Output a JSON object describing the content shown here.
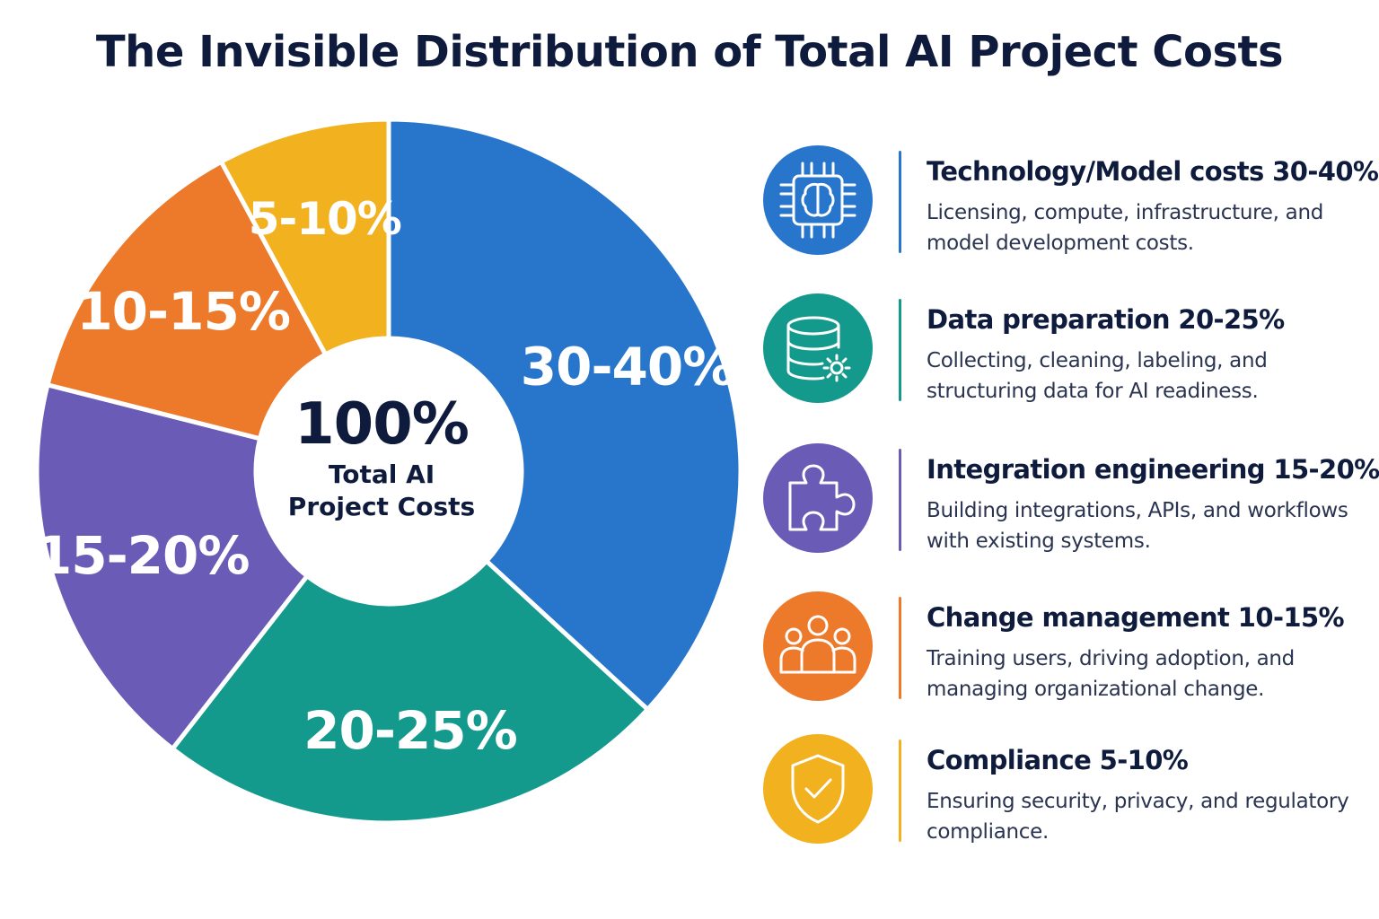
{
  "title": "The Invisible Distribution of Total AI Project Costs",
  "center": {
    "value": "100%",
    "label": "Total AI Project Costs"
  },
  "chart_data": {
    "type": "pie",
    "title": "The Invisible Distribution of Total AI Project Costs",
    "center_value": "100%",
    "center_label": "Total AI Project Costs",
    "start_angle_deg": -90,
    "slices": [
      {
        "label": "30-40%",
        "value": 35,
        "color": "#2876CC"
      },
      {
        "label": "20-25%",
        "value": 22.5,
        "color": "#149A8C"
      },
      {
        "label": "15-20%",
        "value": 17.5,
        "color": "#6A5CB6"
      },
      {
        "label": "10-15%",
        "value": 12.5,
        "color": "#EC7A2A"
      },
      {
        "label": "5-10%",
        "value": 7.5,
        "color": "#F2B11E"
      }
    ]
  },
  "legend": [
    {
      "title": "Technology/Model costs 30-40%",
      "description": "Licensing, compute, infrastructure, and model development costs.",
      "icon": "chip-brain-icon",
      "color": "#2876CC"
    },
    {
      "title": "Data preparation 20-25%",
      "description": "Collecting, cleaning, labeling, and structuring data for AI readiness.",
      "icon": "database-gear-icon",
      "color": "#149A8C"
    },
    {
      "title": "Integration engineering 15-20%",
      "description": "Building integrations, APIs, and workflows with existing systems.",
      "icon": "puzzle-piece-icon",
      "color": "#6A5CB6"
    },
    {
      "title": "Change management 10-15%",
      "description": "Training users, driving adoption, and managing organizational change.",
      "icon": "people-group-icon",
      "color": "#EC7A2A"
    },
    {
      "title": "Compliance 5-10%",
      "description": "Ensuring security, privacy, and regulatory compliance.",
      "icon": "shield-check-icon",
      "color": "#F2B11E"
    }
  ]
}
